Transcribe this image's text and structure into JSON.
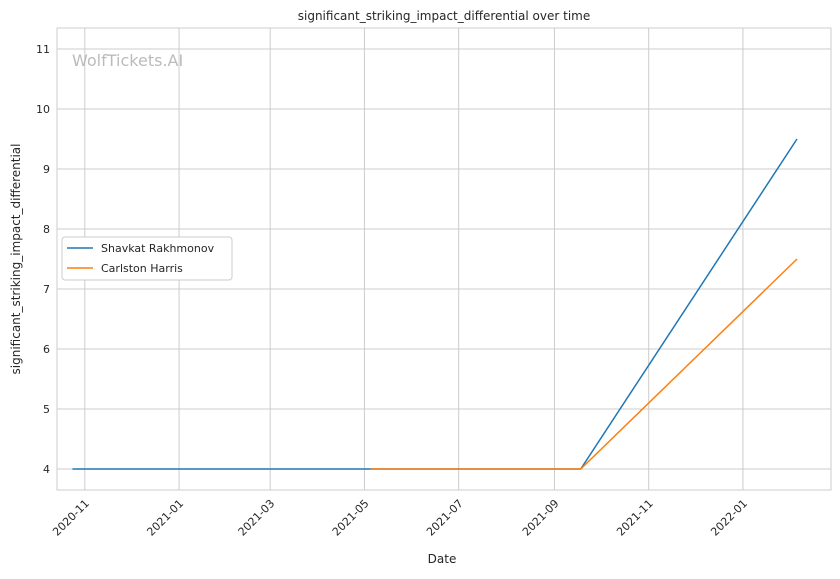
{
  "chart_data": {
    "type": "line",
    "title": "significant_striking_impact_differential over time",
    "xlabel": "Date",
    "ylabel": "significant_striking_impact_differential",
    "watermark": "WolfTickets.AI",
    "x_ticks": [
      "2020-11",
      "2021-01",
      "2021-03",
      "2021-05",
      "2021-07",
      "2021-09",
      "2021-11",
      "2022-01"
    ],
    "y_ticks": [
      4,
      5,
      6,
      7,
      8,
      9,
      10,
      11
    ],
    "ylim": [
      3.65,
      11.35
    ],
    "xlim": [
      "2020-10-14",
      "2022-02-27"
    ],
    "grid": true,
    "legend_placement": "center-left",
    "series": [
      {
        "name": "Shavkat Rakhmonov",
        "color": "#1f77b4",
        "x": [
          "2020-10-24",
          "2021-09-18",
          "2022-02-05"
        ],
        "y": [
          4,
          4,
          9.5
        ]
      },
      {
        "name": "Carlston Harris",
        "color": "#ff7f0e",
        "x": [
          "2021-05-05",
          "2021-09-18",
          "2022-02-05"
        ],
        "y": [
          4,
          4,
          7.5
        ]
      }
    ]
  }
}
